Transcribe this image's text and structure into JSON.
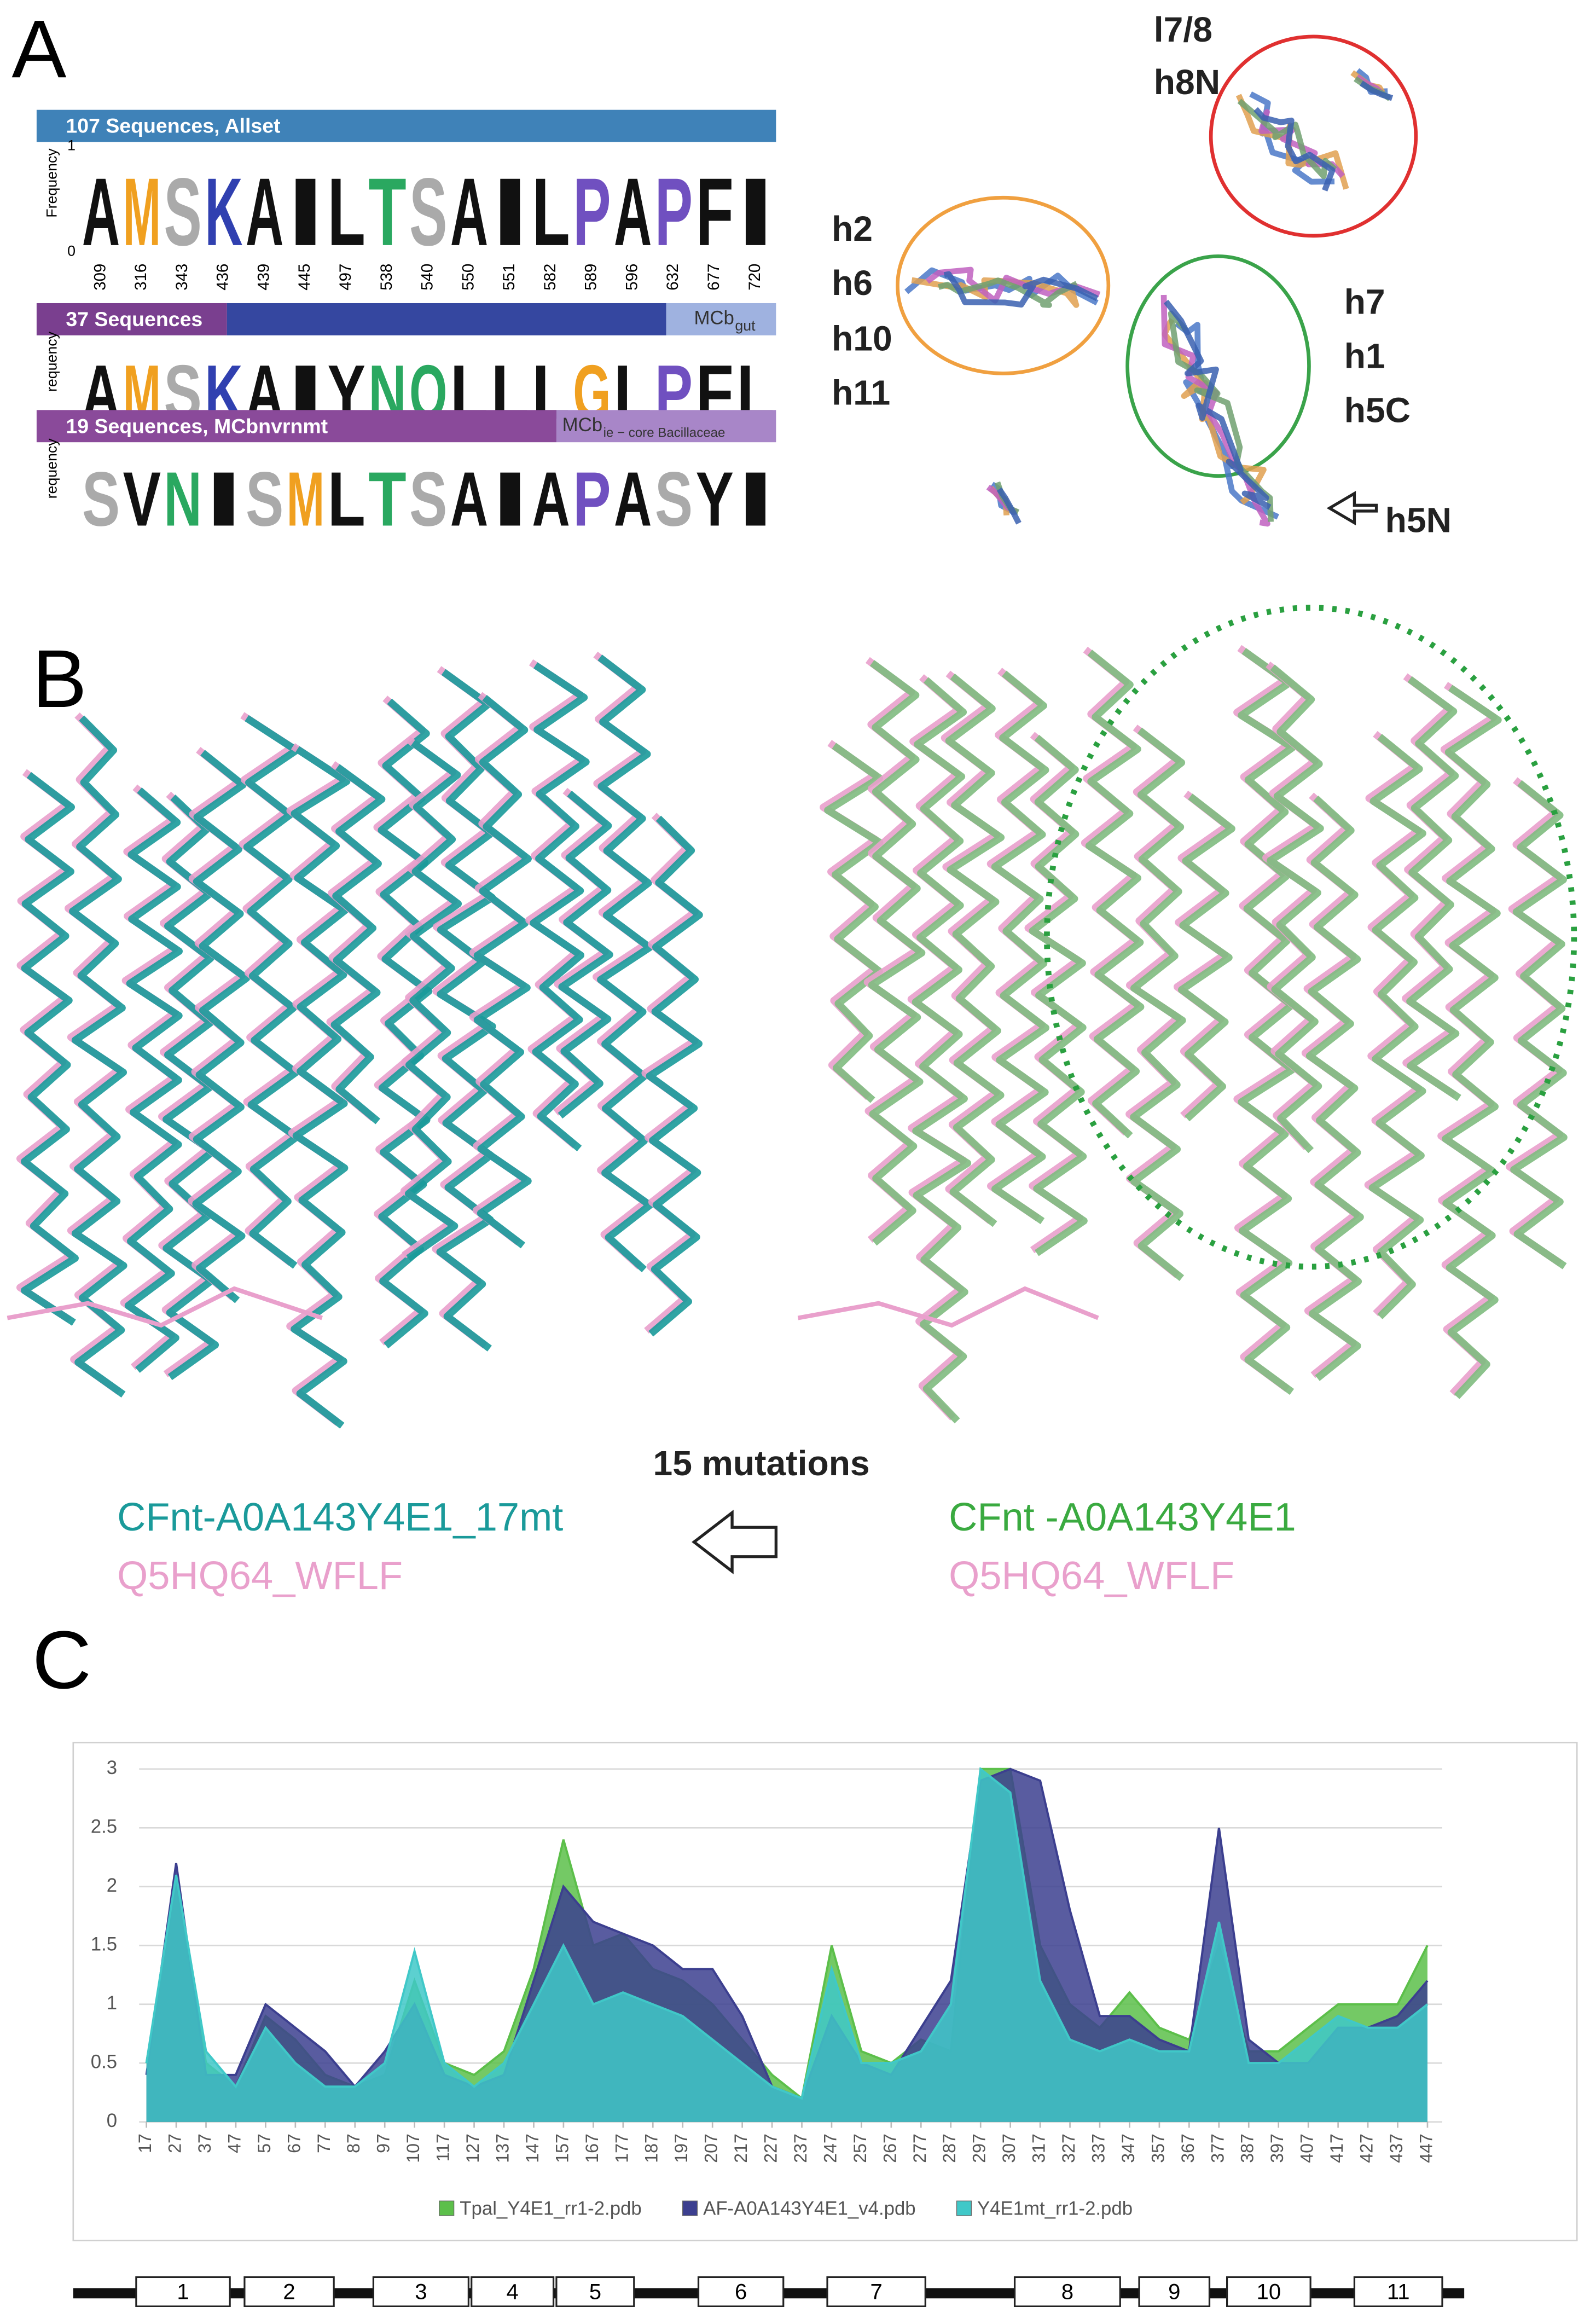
{
  "panel_labels": [
    "A",
    "B",
    "C"
  ],
  "panel_a": {
    "logos": [
      {
        "header": "107 Sequences, Allset",
        "y_label": "Frequency",
        "y_top": "1",
        "y_bottom": "0",
        "letters": [
          "A",
          "M",
          "S",
          "K",
          "A",
          "I",
          "L",
          "T",
          "S",
          "A",
          "I",
          "L",
          "P",
          "A",
          "P",
          "F",
          "I"
        ],
        "positions": [
          "309",
          "316",
          "343",
          "436",
          "439",
          "445",
          "497",
          "538",
          "540",
          "550",
          "551",
          "582",
          "589",
          "596",
          "632",
          "677",
          "720"
        ]
      },
      {
        "header": "37 Sequences",
        "tag": "MCb",
        "tag_sub": "gut",
        "y_label": "requency",
        "letters": [
          "A",
          "M",
          "S",
          "K",
          "A",
          "I",
          "Y",
          "N",
          "Q",
          "L",
          "L",
          "L",
          "G",
          "L",
          "P",
          "F",
          "L"
        ]
      },
      {
        "header": "19 Sequences, MCbnvrnmt",
        "tag": "MCb",
        "tag_sub": "ie − core Bacillaceae",
        "y_label": "requency",
        "letters": [
          "S",
          "V",
          "N",
          "I",
          "S",
          "M",
          "L",
          "T",
          "S",
          "A",
          "I",
          "A",
          "P",
          "A",
          "S",
          "Y",
          "I"
        ]
      }
    ],
    "helix_labels": [
      "l7/8",
      "h8N",
      "h2",
      "h6",
      "h10",
      "h11",
      "h7",
      "h1",
      "h5C",
      "h5N"
    ]
  },
  "panel_b": {
    "mutation_label": "15 mutations",
    "left_legend": [
      "CFnt-A0A143Y4E1_17mt",
      "Q5HQ64_WFLF"
    ],
    "right_legend": [
      "CFnt -A0A143Y4E1",
      "Q5HQ64_WFLF"
    ]
  },
  "chart_data": {
    "type": "area",
    "x": [
      17,
      27,
      37,
      47,
      57,
      67,
      77,
      87,
      97,
      107,
      117,
      127,
      137,
      147,
      157,
      167,
      177,
      187,
      197,
      207,
      217,
      227,
      237,
      247,
      257,
      267,
      277,
      287,
      297,
      307,
      317,
      327,
      337,
      347,
      357,
      367,
      377,
      387,
      397,
      407,
      417,
      427,
      437,
      447
    ],
    "series": [
      {
        "name": "Tpal_Y4E1_rr1-2.pdb",
        "color": "#5cbf4a",
        "values": [
          0.5,
          2.0,
          0.5,
          0.3,
          0.9,
          0.7,
          0.4,
          0.3,
          0.4,
          1.2,
          0.5,
          0.4,
          0.6,
          1.3,
          2.4,
          1.5,
          1.6,
          1.3,
          1.2,
          1.0,
          0.7,
          0.4,
          0.2,
          1.5,
          0.6,
          0.5,
          0.7,
          0.6,
          3.0,
          3.0,
          1.5,
          1.0,
          0.8,
          1.1,
          0.8,
          0.7,
          1.5,
          0.6,
          0.6,
          0.8,
          1.0,
          1.0,
          1.0,
          1.5
        ]
      },
      {
        "name": "AF-A0A143Y4E1_v4.pdb",
        "color": "#3c3f8f",
        "values": [
          0.4,
          2.2,
          0.4,
          0.4,
          1.0,
          0.8,
          0.6,
          0.3,
          0.6,
          1.0,
          0.4,
          0.3,
          0.4,
          1.2,
          2.0,
          1.7,
          1.6,
          1.5,
          1.3,
          1.3,
          0.9,
          0.3,
          0.2,
          0.9,
          0.5,
          0.4,
          0.8,
          1.2,
          2.9,
          3.0,
          2.9,
          1.8,
          0.9,
          0.9,
          0.7,
          0.6,
          2.5,
          0.7,
          0.5,
          0.5,
          0.8,
          0.8,
          0.9,
          1.2
        ]
      },
      {
        "name": "Y4E1mt_rr1-2.pdb",
        "color": "#40c8c8",
        "values": [
          0.5,
          2.1,
          0.6,
          0.3,
          0.8,
          0.5,
          0.3,
          0.3,
          0.5,
          1.45,
          0.5,
          0.3,
          0.5,
          1.0,
          1.5,
          1.0,
          1.1,
          1.0,
          0.9,
          0.7,
          0.5,
          0.3,
          0.2,
          1.3,
          0.5,
          0.5,
          0.6,
          1.0,
          3.0,
          2.8,
          1.2,
          0.7,
          0.6,
          0.7,
          0.6,
          0.6,
          1.7,
          0.5,
          0.5,
          0.7,
          0.9,
          0.8,
          0.8,
          1.0
        ]
      }
    ],
    "xlim": [
      17,
      450
    ],
    "xticks": [
      17,
      27,
      37,
      47,
      57,
      67,
      77,
      87,
      97,
      107,
      117,
      127,
      137,
      147,
      157,
      167,
      177,
      187,
      197,
      207,
      217,
      227,
      237,
      247,
      257,
      267,
      277,
      287,
      297,
      307,
      317,
      327,
      337,
      347,
      357,
      367,
      377,
      387,
      397,
      407,
      417,
      427,
      437,
      447
    ],
    "ylim": [
      0,
      3
    ],
    "yticks": [
      0,
      0.5,
      1,
      1.5,
      2,
      2.5,
      3
    ],
    "grid": true,
    "legend": "bottom"
  },
  "topology": {
    "segments": [
      "1",
      "2",
      "3",
      "4",
      "5",
      "6",
      "7",
      "8",
      "9",
      "10",
      "11"
    ]
  }
}
